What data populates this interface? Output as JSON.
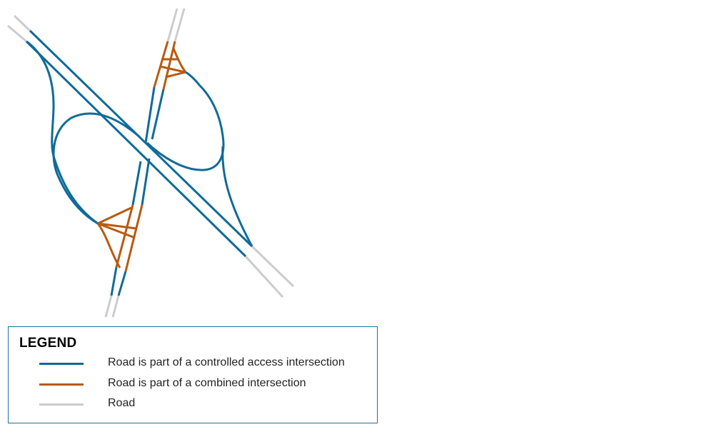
{
  "colors": {
    "controlled_access": "#0f6b98",
    "combined": "#b85a10",
    "road": "#cccccc"
  },
  "legend": {
    "title": "LEGEND",
    "items": [
      {
        "label": "Road is part of a controlled access intersection",
        "color": "#0f6b98"
      },
      {
        "label": "Road is part of a combined intersection",
        "color": "#b85a10"
      },
      {
        "label": "Road",
        "color": "#cccccc"
      }
    ]
  }
}
